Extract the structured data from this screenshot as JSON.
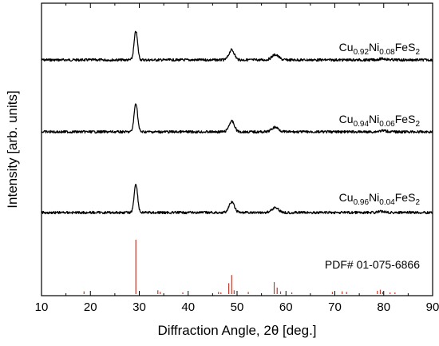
{
  "chart_data": {
    "type": "line",
    "xlabel": "Diffraction Angle, 2θ [deg.]",
    "ylabel": "Intensity [arb. units]",
    "xlim": [
      10,
      90
    ],
    "xticks": [
      10,
      20,
      30,
      40,
      50,
      60,
      70,
      80,
      90
    ],
    "yaxis_numbers_shown": false,
    "grid": false,
    "series": [
      {
        "name_parts": [
          "Cu",
          "0.92",
          "Ni",
          "0.08",
          "FeS",
          "2"
        ],
        "color": "#000000",
        "peaks": [
          {
            "x": 29.3,
            "intensity": 1.0
          },
          {
            "x": 48.9,
            "intensity": 0.35
          },
          {
            "x": 57.8,
            "intensity": 0.18
          },
          {
            "x": 79.8,
            "intensity": 0.04
          }
        ]
      },
      {
        "name_parts": [
          "Cu",
          "0.94",
          "Ni",
          "0.06",
          "FeS",
          "2"
        ],
        "color": "#000000",
        "peaks": [
          {
            "x": 29.3,
            "intensity": 1.0
          },
          {
            "x": 48.9,
            "intensity": 0.37
          },
          {
            "x": 57.8,
            "intensity": 0.16
          },
          {
            "x": 79.8,
            "intensity": 0.04
          }
        ]
      },
      {
        "name_parts": [
          "Cu",
          "0.96",
          "Ni",
          "0.04",
          "FeS",
          "2"
        ],
        "color": "#000000",
        "peaks": [
          {
            "x": 29.3,
            "intensity": 1.0
          },
          {
            "x": 48.9,
            "intensity": 0.36
          },
          {
            "x": 57.8,
            "intensity": 0.17
          },
          {
            "x": 79.8,
            "intensity": 0.04
          }
        ]
      }
    ],
    "reference_pattern": {
      "label": "PDF#  01-075-6866",
      "color": "#c0392b",
      "lines": [
        {
          "x": 18.7,
          "intensity": 0.05
        },
        {
          "x": 29.3,
          "intensity": 1.0
        },
        {
          "x": 33.8,
          "intensity": 0.07
        },
        {
          "x": 34.3,
          "intensity": 0.04
        },
        {
          "x": 38.9,
          "intensity": 0.03
        },
        {
          "x": 46.2,
          "intensity": 0.04
        },
        {
          "x": 46.7,
          "intensity": 0.03
        },
        {
          "x": 48.3,
          "intensity": 0.2
        },
        {
          "x": 48.9,
          "intensity": 0.35
        },
        {
          "x": 49.4,
          "intensity": 0.07
        },
        {
          "x": 52.3,
          "intensity": 0.04
        },
        {
          "x": 57.6,
          "intensity": 0.22
        },
        {
          "x": 58.2,
          "intensity": 0.12
        },
        {
          "x": 58.9,
          "intensity": 0.05
        },
        {
          "x": 61.2,
          "intensity": 0.03
        },
        {
          "x": 69.5,
          "intensity": 0.04
        },
        {
          "x": 71.5,
          "intensity": 0.05
        },
        {
          "x": 72.4,
          "intensity": 0.04
        },
        {
          "x": 78.7,
          "intensity": 0.06
        },
        {
          "x": 79.3,
          "intensity": 0.08
        },
        {
          "x": 79.8,
          "intensity": 0.04
        },
        {
          "x": 81.3,
          "intensity": 0.03
        },
        {
          "x": 82.3,
          "intensity": 0.03
        }
      ]
    }
  }
}
